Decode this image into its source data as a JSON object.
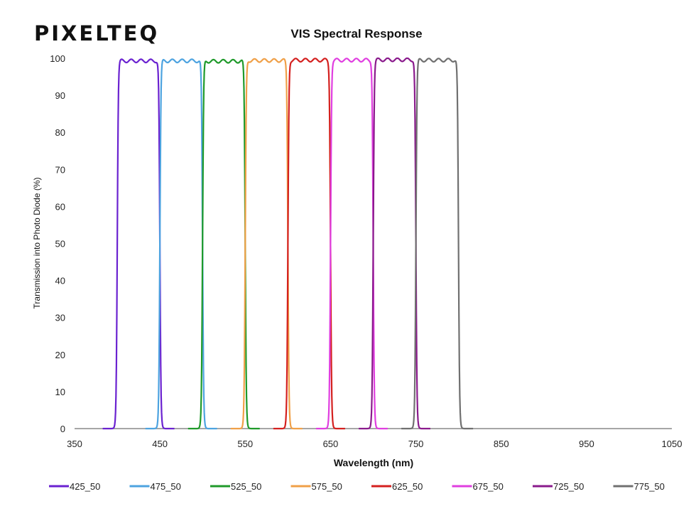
{
  "logo": {
    "text": "PIXELTEQ"
  },
  "chart_data": {
    "type": "line",
    "title": "VIS Spectral Response",
    "xlabel": "Wavelength (nm)",
    "ylabel": "Transmission into Photo Diode (%)",
    "xlim": [
      350,
      1050
    ],
    "ylim": [
      0,
      100
    ],
    "xticks": [
      350,
      450,
      550,
      650,
      750,
      850,
      950,
      1050
    ],
    "yticks": [
      0,
      10,
      20,
      30,
      40,
      50,
      60,
      70,
      80,
      90,
      100
    ],
    "grid": false,
    "legend": "bottom",
    "series": [
      {
        "name": "425_50",
        "center": 425,
        "fwhm": 50,
        "peak": 99.3,
        "color": "#6a22d0"
      },
      {
        "name": "475_50",
        "center": 475,
        "fwhm": 50,
        "peak": 99.3,
        "color": "#4da3e0"
      },
      {
        "name": "525_50",
        "center": 525,
        "fwhm": 50,
        "peak": 99.2,
        "color": "#1f9a2a"
      },
      {
        "name": "575_50",
        "center": 575,
        "fwhm": 50,
        "peak": 99.4,
        "color": "#f0a048"
      },
      {
        "name": "625_50",
        "center": 625,
        "fwhm": 50,
        "peak": 99.5,
        "color": "#d4201f"
      },
      {
        "name": "675_50",
        "center": 675,
        "fwhm": 50,
        "peak": 99.5,
        "color": "#e03ee0"
      },
      {
        "name": "725_50",
        "center": 725,
        "fwhm": 50,
        "peak": 99.6,
        "color": "#8a1a8c"
      },
      {
        "name": "775_50",
        "center": 775,
        "fwhm": 50,
        "peak": 99.5,
        "color": "#707070"
      }
    ]
  }
}
